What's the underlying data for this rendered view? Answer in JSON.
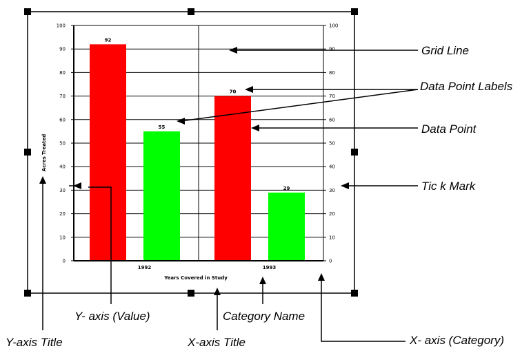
{
  "colors": {
    "red_series": "#ff0000",
    "green_series": "#00ff00",
    "ink": "#000000",
    "background": "#ffffff"
  },
  "chart_data": {
    "type": "bar",
    "categories": [
      "1992",
      "1993"
    ],
    "series": [
      {
        "values": [
          92,
          70
        ],
        "color": "#ff0000"
      },
      {
        "values": [
          55,
          29
        ],
        "color": "#00ff00"
      }
    ],
    "data_labels": [
      "92",
      "55",
      "70",
      "29"
    ],
    "ylim": [
      0,
      100
    ],
    "y_ticks": [
      "0",
      "10",
      "20",
      "30",
      "40",
      "50",
      "60",
      "70",
      "80",
      "90",
      "100"
    ],
    "secondary_y_ticks": [
      "0",
      "10",
      "20",
      "30",
      "40",
      "50",
      "60",
      "70",
      "80",
      "90",
      "100"
    ],
    "ylabel": "Acres Treated",
    "xlabel": "Years Covered in Study",
    "grid": true
  },
  "callouts": {
    "grid_line": "Grid Line",
    "data_point_labels": "Data Point Labels",
    "data_point": "Data Point",
    "tick_mark": "Tic k Mark",
    "y_axis_value": "Y- axis (Value)",
    "category_name": "Category Name",
    "y_axis_title": "Y-axis Title",
    "x_axis_title": "X-axis Title",
    "x_axis_category": "X- axis (Category)"
  }
}
